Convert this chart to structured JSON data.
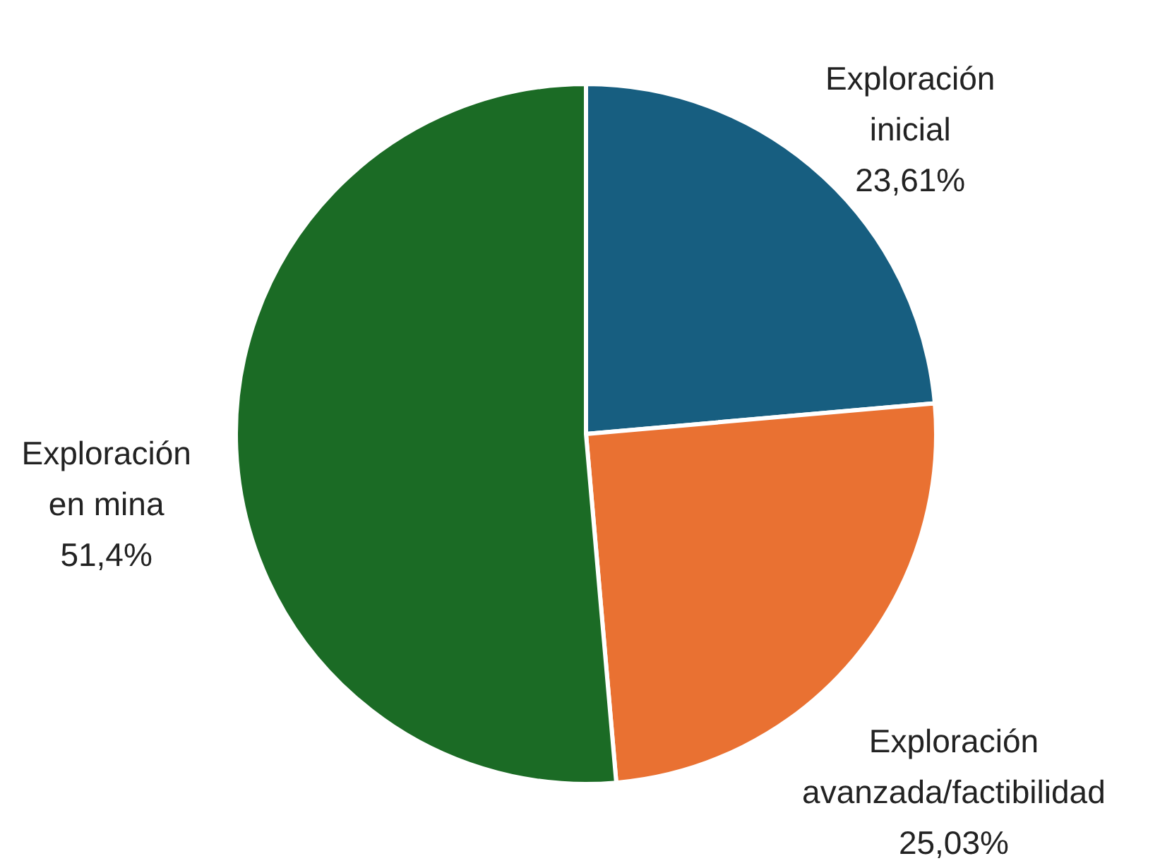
{
  "chart_data": {
    "type": "pie",
    "categories": [
      "Exploración inicial",
      "Exploración avanzada/factibilidad",
      "Exploración en mina"
    ],
    "values": [
      23.61,
      25.03,
      51.4
    ],
    "colors": [
      "#175e80",
      "#e97132",
      "#1b6b25"
    ],
    "value_labels": [
      "23,61%",
      "25,03%",
      "51,4%"
    ]
  }
}
